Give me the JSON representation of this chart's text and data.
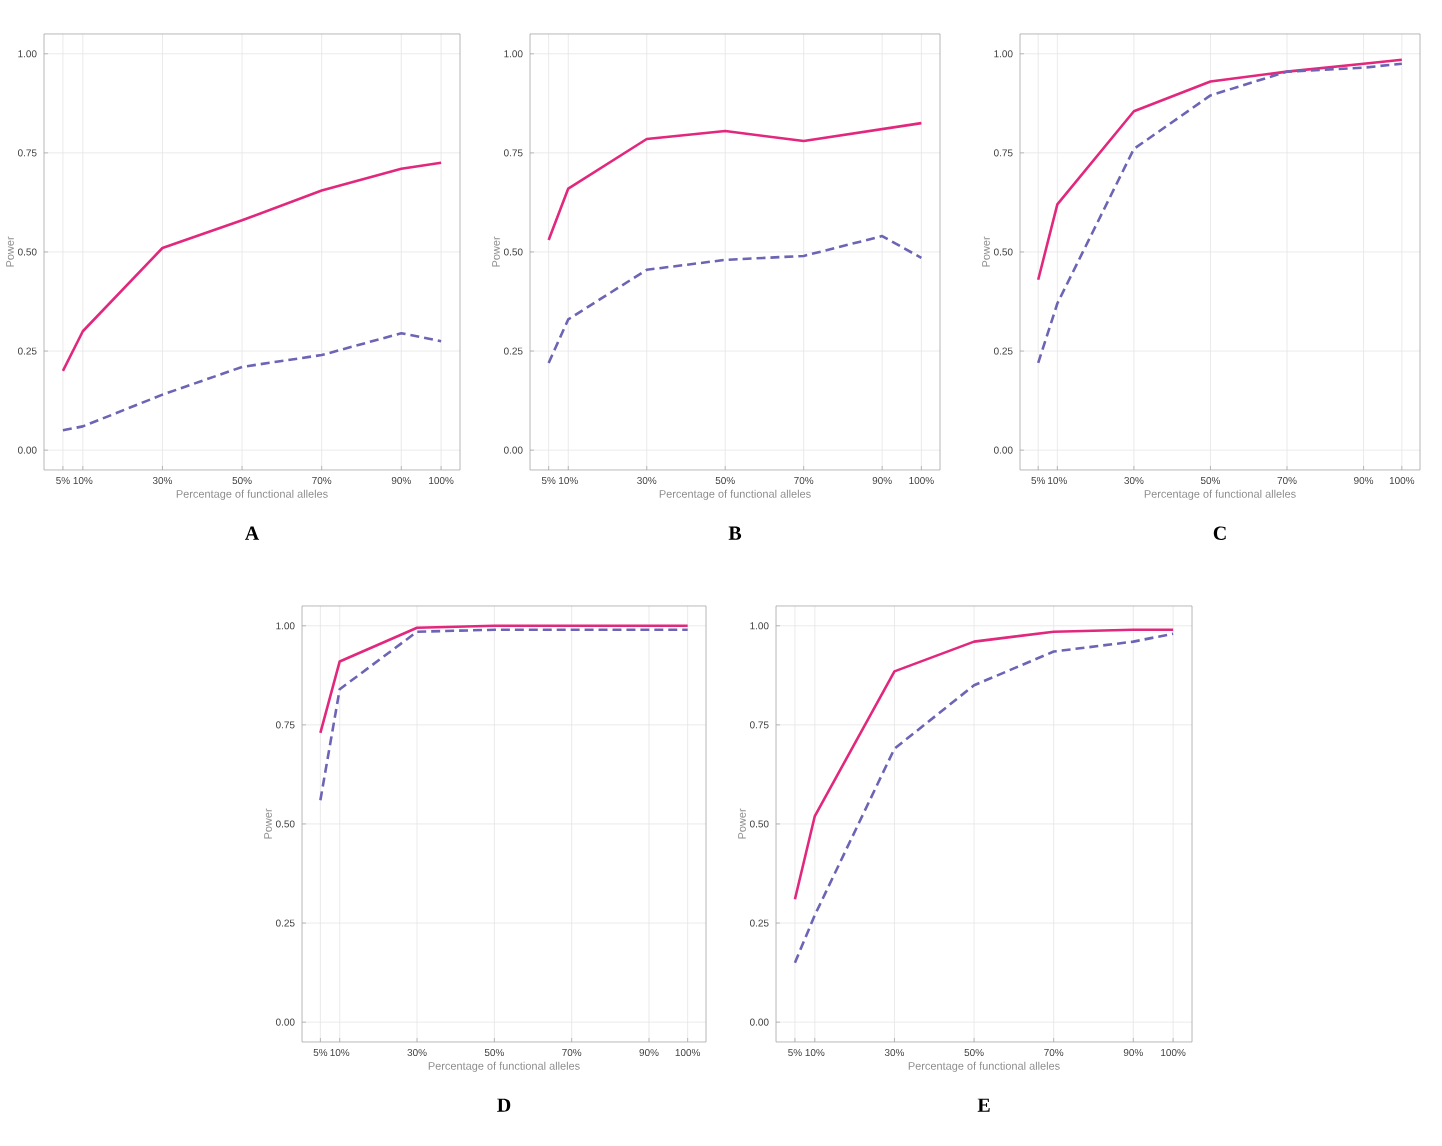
{
  "chart_data": [
    {
      "type": "line",
      "xlabel": "Percentage of functional alleles",
      "ylabel": "Power",
      "x": [
        5,
        10,
        30,
        50,
        70,
        90,
        100
      ],
      "xlim": [
        0.25,
        104.75
      ],
      "xticks": [
        {
          "value": 5,
          "label": "5%"
        },
        {
          "value": 10,
          "label": "10%"
        },
        {
          "value": 30,
          "label": "30%"
        },
        {
          "value": 50,
          "label": "50%"
        },
        {
          "value": 70,
          "label": "70%"
        },
        {
          "value": 90,
          "label": "90%"
        },
        {
          "value": 100,
          "label": "100%"
        }
      ],
      "ylim": [
        -0.05,
        1.05
      ],
      "yticks": [
        {
          "value": 0,
          "label": "0.00"
        },
        {
          "value": 0.25,
          "label": "0.25"
        },
        {
          "value": 0.5,
          "label": "0.50"
        },
        {
          "value": 0.75,
          "label": "0.75"
        },
        {
          "value": 1,
          "label": "1.00"
        }
      ],
      "grid": true,
      "annotations": [
        "A"
      ],
      "series": [
        {
          "color": "#e2287c",
          "line_style": "solid",
          "values": [
            0.2,
            0.3,
            0.51,
            0.58,
            0.655,
            0.71,
            0.725
          ]
        },
        {
          "color": "#6c64b4",
          "line_style": "dashed",
          "values": [
            0.05,
            0.06,
            0.14,
            0.21,
            0.24,
            0.295,
            0.275
          ]
        }
      ]
    },
    {
      "type": "line",
      "xlabel": "Percentage of functional alleles",
      "ylabel": "Power",
      "x": [
        5,
        10,
        30,
        50,
        70,
        90,
        100
      ],
      "xlim": [
        0.25,
        104.75
      ],
      "xticks": [
        {
          "value": 5,
          "label": "5%"
        },
        {
          "value": 10,
          "label": "10%"
        },
        {
          "value": 30,
          "label": "30%"
        },
        {
          "value": 50,
          "label": "50%"
        },
        {
          "value": 70,
          "label": "70%"
        },
        {
          "value": 90,
          "label": "90%"
        },
        {
          "value": 100,
          "label": "100%"
        }
      ],
      "ylim": [
        -0.05,
        1.05
      ],
      "yticks": [
        {
          "value": 0,
          "label": "0.00"
        },
        {
          "value": 0.25,
          "label": "0.25"
        },
        {
          "value": 0.5,
          "label": "0.50"
        },
        {
          "value": 0.75,
          "label": "0.75"
        },
        {
          "value": 1,
          "label": "1.00"
        }
      ],
      "grid": true,
      "annotations": [
        "B"
      ],
      "series": [
        {
          "color": "#e2287c",
          "line_style": "solid",
          "values": [
            0.53,
            0.66,
            0.785,
            0.805,
            0.78,
            0.81,
            0.825
          ]
        },
        {
          "color": "#6c64b4",
          "line_style": "dashed",
          "values": [
            0.22,
            0.33,
            0.455,
            0.48,
            0.49,
            0.54,
            0.485
          ]
        }
      ]
    },
    {
      "type": "line",
      "xlabel": "Percentage of functional alleles",
      "ylabel": "Power",
      "x": [
        5,
        10,
        30,
        50,
        70,
        90,
        100
      ],
      "xlim": [
        0.25,
        104.75
      ],
      "xticks": [
        {
          "value": 5,
          "label": "5%"
        },
        {
          "value": 10,
          "label": "10%"
        },
        {
          "value": 30,
          "label": "30%"
        },
        {
          "value": 50,
          "label": "50%"
        },
        {
          "value": 70,
          "label": "70%"
        },
        {
          "value": 90,
          "label": "90%"
        },
        {
          "value": 100,
          "label": "100%"
        }
      ],
      "ylim": [
        -0.05,
        1.05
      ],
      "yticks": [
        {
          "value": 0,
          "label": "0.00"
        },
        {
          "value": 0.25,
          "label": "0.25"
        },
        {
          "value": 0.5,
          "label": "0.50"
        },
        {
          "value": 0.75,
          "label": "0.75"
        },
        {
          "value": 1,
          "label": "1.00"
        }
      ],
      "grid": true,
      "annotations": [
        "C"
      ],
      "series": [
        {
          "color": "#e2287c",
          "line_style": "solid",
          "values": [
            0.43,
            0.62,
            0.855,
            0.93,
            0.955,
            0.975,
            0.985
          ]
        },
        {
          "color": "#6c64b4",
          "line_style": "dashed",
          "values": [
            0.22,
            0.37,
            0.76,
            0.895,
            0.955,
            0.965,
            0.975
          ]
        }
      ]
    },
    {
      "type": "line",
      "xlabel": "Percentage of functional alleles",
      "ylabel": "Power",
      "x": [
        5,
        10,
        30,
        50,
        70,
        90,
        100
      ],
      "xlim": [
        0.25,
        104.75
      ],
      "xticks": [
        {
          "value": 5,
          "label": "5%"
        },
        {
          "value": 10,
          "label": "10%"
        },
        {
          "value": 30,
          "label": "30%"
        },
        {
          "value": 50,
          "label": "50%"
        },
        {
          "value": 70,
          "label": "70%"
        },
        {
          "value": 90,
          "label": "90%"
        },
        {
          "value": 100,
          "label": "100%"
        }
      ],
      "ylim": [
        -0.05,
        1.05
      ],
      "yticks": [
        {
          "value": 0,
          "label": "0.00"
        },
        {
          "value": 0.25,
          "label": "0.25"
        },
        {
          "value": 0.5,
          "label": "0.50"
        },
        {
          "value": 0.75,
          "label": "0.75"
        },
        {
          "value": 1,
          "label": "1.00"
        }
      ],
      "grid": true,
      "annotations": [
        "D"
      ],
      "series": [
        {
          "color": "#e2287c",
          "line_style": "solid",
          "values": [
            0.73,
            0.91,
            0.995,
            1.0,
            1.0,
            1.0,
            1.0
          ]
        },
        {
          "color": "#6c64b4",
          "line_style": "dashed",
          "values": [
            0.56,
            0.84,
            0.985,
            0.99,
            0.99,
            0.99,
            0.99
          ]
        }
      ]
    },
    {
      "type": "line",
      "xlabel": "Percentage of functional alleles",
      "ylabel": "Power",
      "x": [
        5,
        10,
        30,
        50,
        70,
        90,
        100
      ],
      "xlim": [
        0.25,
        104.75
      ],
      "xticks": [
        {
          "value": 5,
          "label": "5%"
        },
        {
          "value": 10,
          "label": "10%"
        },
        {
          "value": 30,
          "label": "30%"
        },
        {
          "value": 50,
          "label": "50%"
        },
        {
          "value": 70,
          "label": "70%"
        },
        {
          "value": 90,
          "label": "90%"
        },
        {
          "value": 100,
          "label": "100%"
        }
      ],
      "ylim": [
        -0.05,
        1.05
      ],
      "yticks": [
        {
          "value": 0,
          "label": "0.00"
        },
        {
          "value": 0.25,
          "label": "0.25"
        },
        {
          "value": 0.5,
          "label": "0.50"
        },
        {
          "value": 0.75,
          "label": "0.75"
        },
        {
          "value": 1,
          "label": "1.00"
        }
      ],
      "grid": true,
      "annotations": [
        "E"
      ],
      "series": [
        {
          "color": "#e2287c",
          "line_style": "solid",
          "values": [
            0.31,
            0.52,
            0.885,
            0.96,
            0.985,
            0.99,
            0.99
          ]
        },
        {
          "color": "#6c64b4",
          "line_style": "dashed",
          "values": [
            0.15,
            0.27,
            0.69,
            0.85,
            0.935,
            0.96,
            0.98
          ]
        }
      ]
    }
  ]
}
